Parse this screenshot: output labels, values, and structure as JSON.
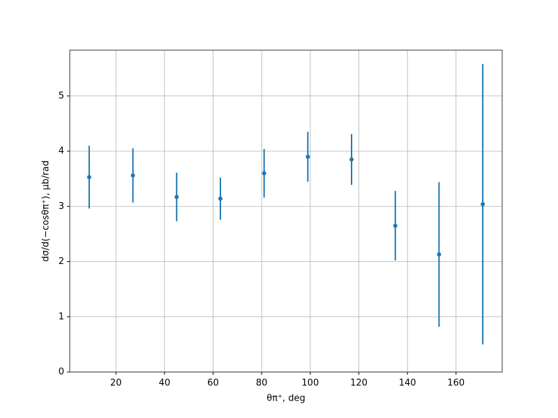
{
  "chart_data": {
    "type": "errorbar",
    "x_label": "θπ⁺, deg",
    "y_label": "dσ/d(−cosθπ⁺), μb/rad",
    "x": [
      9,
      27,
      45,
      63,
      81,
      99,
      117,
      135,
      153,
      171
    ],
    "series": [
      {
        "color": "#1f77b4",
        "values": [
          3.53,
          3.56,
          3.17,
          3.14,
          3.6,
          3.9,
          3.85,
          2.65,
          2.13,
          3.04
        ],
        "errors": [
          0.57,
          0.49,
          0.44,
          0.38,
          0.44,
          0.45,
          0.46,
          0.63,
          1.31,
          2.54
        ]
      }
    ],
    "xlim": [
      1,
      179
    ],
    "xticks": [
      20,
      40,
      60,
      80,
      100,
      120,
      140,
      160
    ],
    "ylim": [
      0,
      5.83
    ],
    "yticks": [
      0,
      1,
      2,
      3,
      4,
      5
    ],
    "grid": true
  }
}
